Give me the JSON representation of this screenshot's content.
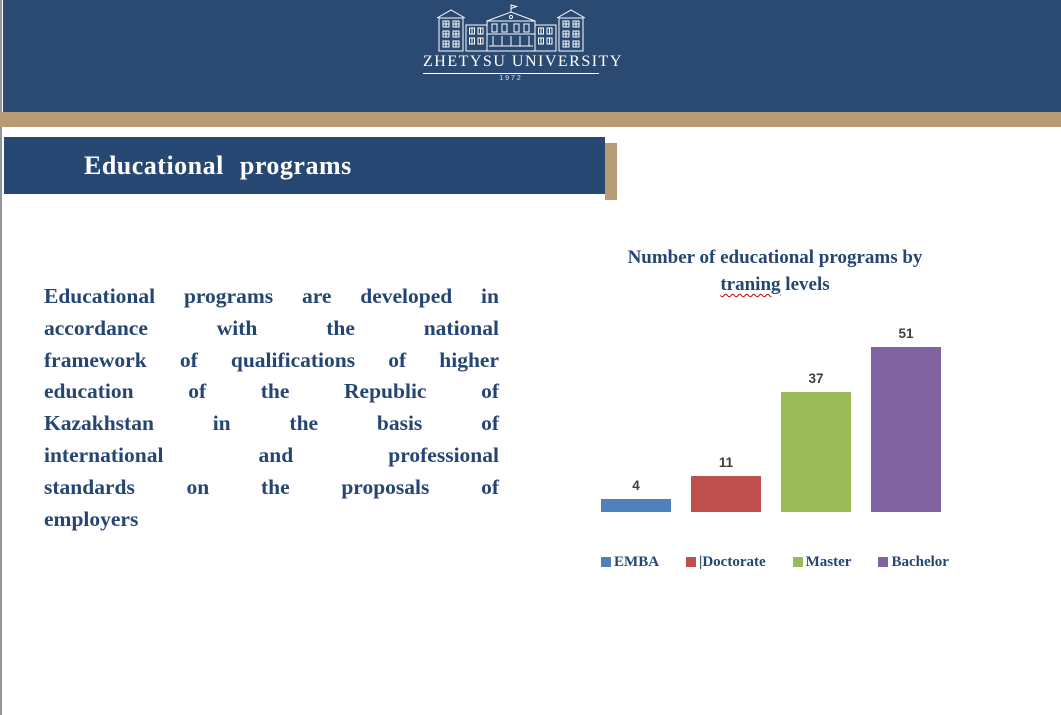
{
  "slide": {
    "logo": {
      "university_name": "ZHETYSU UNIVERSITY",
      "year": "1972"
    },
    "title": "Educational programs",
    "body_lines": [
      "Educational programs are developed in",
      "accordance with the national",
      "framework of qualifications of higher",
      "education of the Republic of",
      "Kazakhstan in the basis of",
      "international and professional",
      "standards on the proposals of",
      "employers"
    ]
  },
  "chart_data": {
    "type": "bar",
    "title": "Number of educational programs by traning levels",
    "title_line1": "Number of educational programs by",
    "title_misspelled_word": "traning",
    "title_line2_rest": "levels",
    "categories": [
      "EMBA",
      "|Doctorate",
      "Master",
      "Bachelor"
    ],
    "values": [
      4,
      11,
      37,
      51
    ],
    "colors": [
      "#4F81BD",
      "#C0504D",
      "#9BBB59",
      "#8064A2"
    ],
    "ylim": [
      0,
      51
    ],
    "grid": false,
    "legend_position": "bottom",
    "data_label_color": "#3F3F3F"
  },
  "theme": {
    "header_bg": "#2A4A72",
    "title_bar_bg": "#264872",
    "accent_tan": "#B79B77",
    "text_navy": "#254673"
  }
}
